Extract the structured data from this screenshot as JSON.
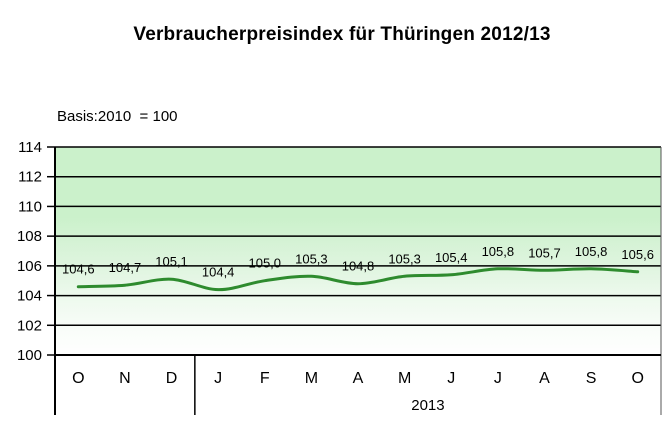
{
  "title": "Verbraucherpreisindex für Thüringen 2012/13",
  "subtitle": "Basis:2010  = 100",
  "chart_data": {
    "type": "line",
    "title": "Verbraucherpreisindex für Thüringen 2012/13",
    "subtitle": "Basis:2010  = 100",
    "categories": [
      "O",
      "N",
      "D",
      "J",
      "F",
      "M",
      "A",
      "M",
      "J",
      "J",
      "A",
      "S",
      "O"
    ],
    "values": [
      104.6,
      104.7,
      105.1,
      104.4,
      105.0,
      105.3,
      104.8,
      105.3,
      105.4,
      105.8,
      105.7,
      105.8,
      105.6
    ],
    "point_labels": [
      "104,6",
      "104,7",
      "105,1",
      "104,4",
      "105,0",
      "105,3",
      "104,8",
      "105,3",
      "105,4",
      "105,8",
      "105,7",
      "105,8",
      "105,6"
    ],
    "x_groups": [
      {
        "label": "",
        "from": 0,
        "to": 2
      },
      {
        "label": "2013",
        "from": 3,
        "to": 12
      }
    ],
    "xlabel": "",
    "ylabel": "",
    "ylim": [
      100,
      114
    ],
    "yticks": [
      100,
      102,
      104,
      106,
      108,
      110,
      112,
      114
    ],
    "grid": "horizontal",
    "legend": "none",
    "smooth": true,
    "colors": {
      "line": "#2e8b2e",
      "grid": "#000000",
      "axis": "#000000",
      "plot_bg_top": "#cbf1cb",
      "plot_bg_bottom": "#ffffff",
      "text": "#000000"
    }
  }
}
